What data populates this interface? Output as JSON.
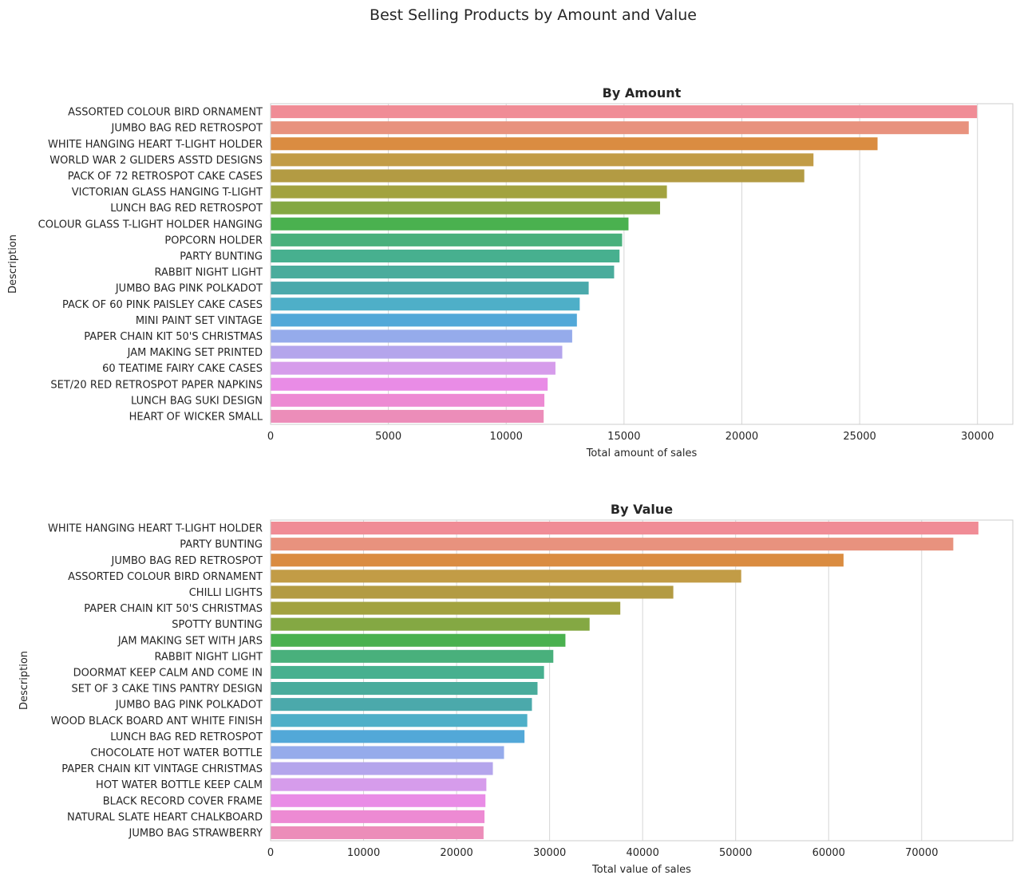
{
  "figure": {
    "title": "Best Selling Products by Amount and Value"
  },
  "chart_data": [
    {
      "type": "bar",
      "orientation": "horizontal",
      "title": "By Amount",
      "xlabel": "Total amount of sales",
      "ylabel": "Description",
      "xlim": [
        0,
        31500
      ],
      "xticks": [
        0,
        5000,
        10000,
        15000,
        20000,
        25000,
        30000
      ],
      "grid": true,
      "categories": [
        "ASSORTED COLOUR BIRD ORNAMENT",
        "JUMBO BAG RED RETROSPOT",
        "WHITE HANGING HEART T-LIGHT HOLDER",
        "WORLD WAR 2 GLIDERS ASSTD DESIGNS",
        "PACK OF 72 RETROSPOT CAKE CASES",
        "VICTORIAN GLASS HANGING T-LIGHT",
        "LUNCH BAG RED RETROSPOT",
        "COLOUR GLASS T-LIGHT HOLDER HANGING",
        "POPCORN HOLDER",
        "PARTY BUNTING",
        "RABBIT NIGHT LIGHT",
        "JUMBO BAG PINK POLKADOT",
        "PACK OF 60 PINK PAISLEY CAKE CASES",
        "MINI PAINT SET VINTAGE",
        "PAPER CHAIN KIT 50'S CHRISTMAS",
        "JAM MAKING SET PRINTED",
        "60 TEATIME FAIRY CAKE CASES",
        "SET/20 RED RETROSPOT PAPER NAPKINS",
        "LUNCH BAG SUKI DESIGN",
        "HEART OF WICKER SMALL"
      ],
      "values": [
        29980,
        29630,
        25760,
        23040,
        22650,
        16820,
        16530,
        15190,
        14920,
        14810,
        14580,
        13500,
        13120,
        13000,
        12800,
        12380,
        12090,
        11760,
        11620,
        11590
      ],
      "colors": [
        "#f08c96",
        "#e8927e",
        "#da8c41",
        "#c29c46",
        "#b39b43",
        "#a2a23f",
        "#84a843",
        "#4ab14f",
        "#49b07c",
        "#47b08f",
        "#4aac9c",
        "#4ba9ab",
        "#4eafc8",
        "#52a8d8",
        "#95abeb",
        "#b4a5ec",
        "#d69ceb",
        "#e98ce6",
        "#ed8ad3",
        "#ec8db9"
      ]
    },
    {
      "type": "bar",
      "orientation": "horizontal",
      "title": "By Value",
      "xlabel": "Total value of sales",
      "ylabel": "Description",
      "xlim": [
        0,
        79800
      ],
      "xticks": [
        0,
        10000,
        20000,
        30000,
        40000,
        50000,
        60000,
        70000
      ],
      "grid": true,
      "categories": [
        "WHITE HANGING HEART T-LIGHT HOLDER",
        "PARTY BUNTING",
        "JUMBO BAG RED RETROSPOT",
        "ASSORTED COLOUR BIRD ORNAMENT",
        "CHILLI LIGHTS",
        "PAPER CHAIN KIT 50'S CHRISTMAS",
        "SPOTTY BUNTING",
        "JAM MAKING SET WITH JARS",
        "RABBIT NIGHT LIGHT",
        "DOORMAT KEEP CALM AND COME IN",
        "SET OF 3 CAKE TINS PANTRY DESIGN",
        "JUMBO BAG PINK POLKADOT",
        "WOOD BLACK BOARD ANT WHITE FINISH",
        "LUNCH BAG RED RETROSPOT",
        "CHOCOLATE HOT WATER BOTTLE",
        "PAPER CHAIN KIT VINTAGE CHRISTMAS",
        "HOT WATER BOTTLE KEEP CALM",
        "BLACK RECORD COVER FRAME",
        "NATURAL SLATE HEART CHALKBOARD",
        "JUMBO BAG STRAWBERRY"
      ],
      "values": [
        76100,
        73400,
        61600,
        50600,
        43300,
        37600,
        34300,
        31700,
        30400,
        29400,
        28700,
        28100,
        27600,
        27300,
        25100,
        23900,
        23200,
        23100,
        23000,
        22900
      ],
      "colors": [
        "#f08c96",
        "#e8927e",
        "#da8c41",
        "#c29c46",
        "#b39b43",
        "#a2a23f",
        "#84a843",
        "#4ab14f",
        "#49b07c",
        "#47b08f",
        "#4aac9c",
        "#4ba9ab",
        "#4eafc8",
        "#52a8d8",
        "#95abeb",
        "#b4a5ec",
        "#d69ceb",
        "#e98ce6",
        "#ed8ad3",
        "#ec8db9"
      ]
    }
  ]
}
